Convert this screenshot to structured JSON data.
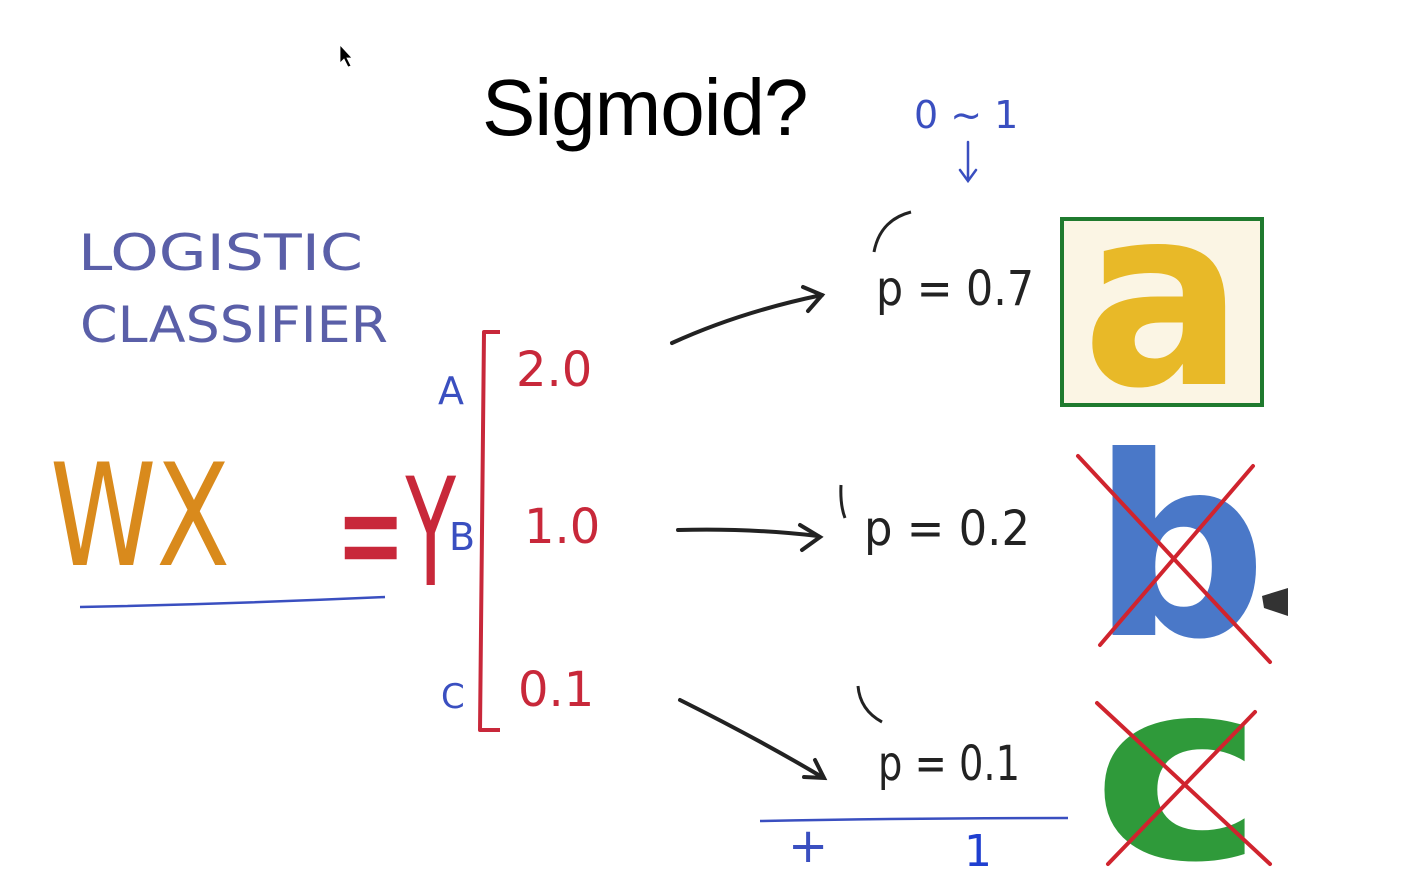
{
  "slide": {
    "title": "Sigmoid?"
  },
  "annotations": {
    "model_line1": "LOGISTIC",
    "model_line2": "CLASSIFIER",
    "wx": "WX",
    "equals_y": "=Y",
    "range_note": "0 ~ 1"
  },
  "scores": [
    {
      "label": "A",
      "value": "2.0"
    },
    {
      "label": "B",
      "value": "1.0"
    },
    {
      "label": "C",
      "value": "0.1"
    }
  ],
  "probabilities": [
    {
      "text": "p = 0.7"
    },
    {
      "text": "p = 0.2"
    },
    {
      "text": "p = 0.1"
    }
  ],
  "sum_note": {
    "plus": "+",
    "one": "1"
  },
  "classes": [
    {
      "letter": "a",
      "color": "#e8b928",
      "selected": true
    },
    {
      "letter": "b",
      "color": "#4a78c8",
      "selected": false
    },
    {
      "letter": "c",
      "color": "#2f9a3a",
      "selected": false
    }
  ],
  "colors": {
    "blue_ink": "#5a5fa8",
    "orange_ink": "#d98a1c",
    "green_ink": "#2a8a3a",
    "red_ink": "#c8283a",
    "black_ink": "#222222",
    "box_green": "#1f7a2e",
    "cross_red": "#d0242e"
  }
}
